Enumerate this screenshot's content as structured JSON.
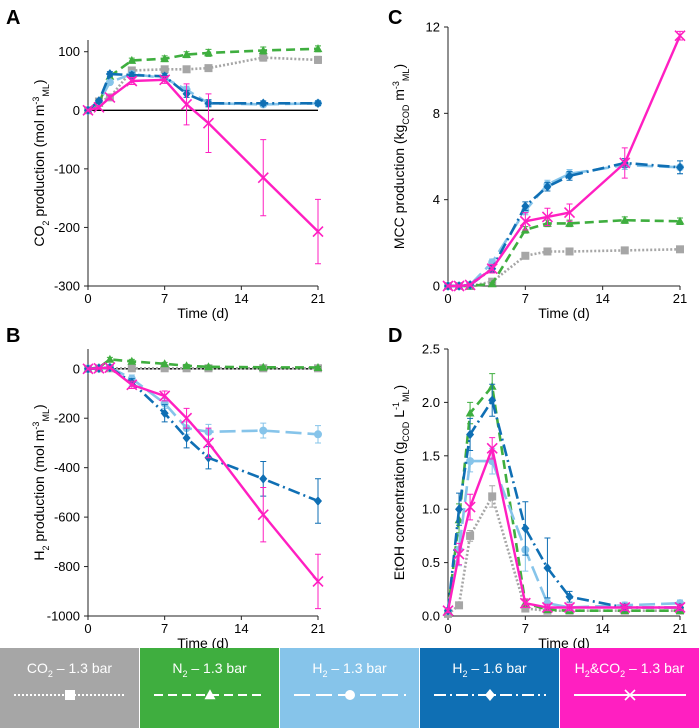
{
  "colors": {
    "co2": "#a6a6a6",
    "n2": "#3fae3f",
    "h2_13": "#86c4ea",
    "h2_16": "#0f6fb4",
    "h2co2": "#ff1fc1",
    "axis": "#222222",
    "zero_line": "#000000"
  },
  "legend": [
    {
      "key": "co2",
      "chem": "CO",
      "sub": "2",
      "rest": " – 1.3 bar",
      "marker": "square",
      "dash": "2,2"
    },
    {
      "key": "n2",
      "chem": "N",
      "sub": "2",
      "rest": " – 1.3 bar",
      "marker": "triangle",
      "dash": "9,5"
    },
    {
      "key": "h2_13",
      "chem": "H",
      "sub": "2",
      "rest": " – 1.3 bar",
      "marker": "circle",
      "dash": "16,6"
    },
    {
      "key": "h2_16",
      "chem": "H",
      "sub": "2",
      "rest": " – 1.6 bar",
      "marker": "diamond",
      "dash": "12,4,2,4"
    },
    {
      "key": "h2co2",
      "chem": "H",
      "sub": "2",
      "rest": "&CO",
      "sub2": "2",
      "rest2": " – 1.3 bar",
      "marker": "x",
      "dash": ""
    }
  ],
  "chart_data": [
    {
      "panel_label": "A",
      "type": "line",
      "xlabel": "Time (d)",
      "ylabel": {
        "main": "CO",
        "sub": "2",
        "rest": " production (mol m",
        "sup": "-3",
        "sub2": "ML",
        "end": ")"
      },
      "xlim": [
        0,
        21
      ],
      "ylim": [
        -300,
        120
      ],
      "xticks": [
        0,
        7,
        14,
        21
      ],
      "yticks": [
        -300,
        -200,
        -100,
        0,
        100
      ],
      "zero_line": true,
      "series": [
        {
          "name": "CO2 – 1.3 bar",
          "key": "co2",
          "x": [
            0,
            1,
            2,
            4,
            7,
            9,
            11,
            16,
            21
          ],
          "y": [
            0,
            15,
            22,
            68,
            70,
            70,
            72,
            90,
            86
          ],
          "err": [
            0,
            3,
            3,
            5,
            5,
            5,
            5,
            6,
            6
          ]
        },
        {
          "name": "N2 – 1.3 bar",
          "key": "n2",
          "x": [
            0,
            1,
            2,
            4,
            7,
            9,
            11,
            16,
            21
          ],
          "y": [
            0,
            12,
            58,
            85,
            88,
            95,
            98,
            102,
            105
          ],
          "err": [
            0,
            3,
            4,
            4,
            5,
            5,
            6,
            6,
            5
          ]
        },
        {
          "name": "H2 – 1.3 bar",
          "key": "h2_13",
          "x": [
            0,
            1,
            2,
            4,
            7,
            9,
            11,
            16,
            21
          ],
          "y": [
            0,
            14,
            48,
            62,
            55,
            35,
            12,
            10,
            12
          ],
          "err": [
            0,
            3,
            4,
            5,
            5,
            6,
            6,
            4,
            4
          ]
        },
        {
          "name": "H2 – 1.6 bar",
          "key": "h2_16",
          "x": [
            0,
            1,
            2,
            4,
            7,
            9,
            11,
            16,
            21
          ],
          "y": [
            0,
            16,
            62,
            60,
            58,
            28,
            12,
            12,
            12
          ],
          "err": [
            0,
            3,
            4,
            5,
            5,
            6,
            6,
            4,
            4
          ]
        },
        {
          "name": "H2&CO2 – 1.3 bar",
          "key": "h2co2",
          "x": [
            0,
            1,
            2,
            4,
            7,
            9,
            11,
            16,
            21
          ],
          "y": [
            0,
            5,
            22,
            50,
            52,
            10,
            -22,
            -115,
            -207
          ],
          "err": [
            0,
            3,
            4,
            6,
            6,
            35,
            50,
            65,
            55
          ]
        }
      ]
    },
    {
      "panel_label": "C",
      "type": "line",
      "xlabel": "Time (d)",
      "ylabel": {
        "main": "MCC production (kg",
        "sub": "COD",
        "rest": " m",
        "sup": "-3",
        "sub2": "ML",
        "end": ")"
      },
      "xlim": [
        0,
        21
      ],
      "ylim": [
        0,
        12
      ],
      "xticks": [
        0,
        7,
        14,
        21
      ],
      "yticks": [
        0,
        4,
        8,
        12
      ],
      "zero_line": false,
      "series": [
        {
          "name": "CO2 – 1.3 bar",
          "key": "co2",
          "x": [
            0,
            1,
            2,
            4,
            7,
            9,
            11,
            16,
            21
          ],
          "y": [
            0,
            0,
            0,
            0.2,
            1.4,
            1.6,
            1.6,
            1.65,
            1.7
          ],
          "err": [
            0,
            0,
            0,
            0.05,
            0.1,
            0.1,
            0.1,
            0.1,
            0.1
          ]
        },
        {
          "name": "N2 – 1.3 bar",
          "key": "n2",
          "x": [
            0,
            1,
            2,
            4,
            7,
            9,
            11,
            16,
            21
          ],
          "y": [
            0,
            0,
            0,
            0.1,
            2.6,
            2.9,
            2.9,
            3.05,
            3.0
          ],
          "err": [
            0,
            0,
            0,
            0.05,
            0.15,
            0.15,
            0.15,
            0.15,
            0.15
          ]
        },
        {
          "name": "H2 – 1.3 bar",
          "key": "h2_13",
          "x": [
            0,
            1,
            2,
            4,
            7,
            9,
            11,
            16,
            21
          ],
          "y": [
            0,
            0,
            0.05,
            1.1,
            3.5,
            4.7,
            5.2,
            5.6,
            5.5
          ],
          "err": [
            0,
            0,
            0.05,
            0.15,
            0.2,
            0.2,
            0.2,
            0.2,
            0.3
          ]
        },
        {
          "name": "H2 – 1.6 bar",
          "key": "h2_16",
          "x": [
            0,
            1,
            2,
            4,
            7,
            9,
            11,
            16,
            21
          ],
          "y": [
            0,
            0,
            0.05,
            0.8,
            3.7,
            4.6,
            5.1,
            5.7,
            5.5
          ],
          "err": [
            0,
            0,
            0.05,
            0.15,
            0.2,
            0.2,
            0.2,
            0.2,
            0.3
          ]
        },
        {
          "name": "H2&CO2 – 1.3 bar",
          "key": "h2co2",
          "x": [
            0,
            1,
            2,
            4,
            7,
            9,
            11,
            16,
            21
          ],
          "y": [
            0,
            0,
            0.05,
            0.8,
            3.0,
            3.2,
            3.4,
            5.7,
            11.6
          ],
          "err": [
            0,
            0,
            0.05,
            0.2,
            0.4,
            0.4,
            0.4,
            0.7,
            0.2
          ]
        }
      ]
    },
    {
      "panel_label": "B",
      "type": "line",
      "xlabel": "Time (d)",
      "ylabel": {
        "main": "H",
        "sub": "2",
        "rest": " production (mol m",
        "sup": "-3",
        "sub2": "ML",
        "end": ")"
      },
      "xlim": [
        0,
        21
      ],
      "ylim": [
        -1000,
        80
      ],
      "xticks": [
        0,
        7,
        14,
        21
      ],
      "yticks": [
        -1000,
        -800,
        -600,
        -400,
        -200,
        0
      ],
      "zero_line": true,
      "series": [
        {
          "name": "CO2 – 1.3 bar",
          "key": "co2",
          "x": [
            0,
            1,
            2,
            4,
            7,
            9,
            11,
            16,
            21
          ],
          "y": [
            0,
            2,
            2,
            2,
            2,
            2,
            2,
            2,
            2
          ],
          "err": [
            0,
            2,
            2,
            2,
            2,
            2,
            2,
            2,
            2
          ]
        },
        {
          "name": "N2 – 1.3 bar",
          "key": "n2",
          "x": [
            0,
            1,
            2,
            4,
            7,
            9,
            11,
            16,
            21
          ],
          "y": [
            0,
            5,
            38,
            30,
            20,
            12,
            8,
            6,
            5
          ],
          "err": [
            0,
            3,
            8,
            8,
            6,
            6,
            6,
            4,
            4
          ]
        },
        {
          "name": "H2 – 1.3 bar",
          "key": "h2_13",
          "x": [
            0,
            1,
            2,
            4,
            7,
            9,
            11,
            16,
            21
          ],
          "y": [
            0,
            2,
            5,
            -40,
            -140,
            -240,
            -255,
            -250,
            -265
          ],
          "err": [
            0,
            3,
            5,
            15,
            20,
            25,
            30,
            30,
            35
          ]
        },
        {
          "name": "H2 – 1.6 bar",
          "key": "h2_16",
          "x": [
            0,
            1,
            2,
            4,
            7,
            9,
            11,
            16,
            21
          ],
          "y": [
            0,
            2,
            5,
            -55,
            -180,
            -280,
            -360,
            -445,
            -535
          ],
          "err": [
            0,
            3,
            5,
            15,
            35,
            40,
            45,
            70,
            90
          ]
        },
        {
          "name": "H2&CO2 – 1.3 bar",
          "key": "h2co2",
          "x": [
            0,
            1,
            2,
            4,
            7,
            9,
            11,
            16,
            21
          ],
          "y": [
            0,
            2,
            5,
            -65,
            -110,
            -200,
            -300,
            -590,
            -860
          ],
          "err": [
            0,
            3,
            5,
            15,
            20,
            40,
            60,
            110,
            110
          ]
        }
      ]
    },
    {
      "panel_label": "D",
      "type": "line",
      "xlabel": "Time (d)",
      "ylabel": {
        "main": "EtOH concentration (g",
        "sub": "COD",
        "rest": " L",
        "sup": "-1",
        "sub2": "ML",
        "end": ")"
      },
      "xlim": [
        0,
        21
      ],
      "ylim": [
        0,
        2.5
      ],
      "xticks": [
        0,
        7,
        14,
        21
      ],
      "yticks": [
        0,
        0.5,
        1.0,
        1.5,
        2.0,
        2.5
      ],
      "ytick_labels": [
        "0.0",
        "0.5",
        "1.0",
        "1.5",
        "2.0",
        "2.5"
      ],
      "zero_line": false,
      "series": [
        {
          "name": "CO2 – 1.3 bar",
          "key": "co2",
          "x": [
            0,
            1,
            2,
            4,
            7,
            9,
            11,
            16,
            21
          ],
          "y": [
            0.02,
            0.1,
            0.75,
            1.12,
            0.07,
            0.05,
            0.05,
            0.05,
            0.05
          ],
          "err": [
            0.01,
            0.02,
            0.05,
            0.1,
            0.02,
            0.02,
            0.02,
            0.02,
            0.02
          ]
        },
        {
          "name": "N2 – 1.3 bar",
          "key": "n2",
          "x": [
            0,
            1,
            2,
            4,
            7,
            9,
            11,
            16,
            21
          ],
          "y": [
            0.05,
            0.9,
            1.9,
            2.15,
            0.12,
            0.06,
            0.05,
            0.05,
            0.05
          ],
          "err": [
            0.02,
            0.15,
            0.1,
            0.12,
            0.03,
            0.02,
            0.02,
            0.02,
            0.02
          ]
        },
        {
          "name": "H2 – 1.3 bar",
          "key": "h2_13",
          "x": [
            0,
            1,
            2,
            4,
            7,
            9,
            11,
            16,
            21
          ],
          "y": [
            0.05,
            0.62,
            1.45,
            1.45,
            0.62,
            0.12,
            0.08,
            0.1,
            0.12
          ],
          "err": [
            0.02,
            0.15,
            0.1,
            0.12,
            0.2,
            0.04,
            0.03,
            0.03,
            0.03
          ]
        },
        {
          "name": "H2 – 1.6 bar",
          "key": "h2_16",
          "x": [
            0,
            1,
            2,
            4,
            7,
            9,
            11,
            16,
            21
          ],
          "y": [
            0.05,
            1.0,
            1.7,
            2.02,
            0.82,
            0.45,
            0.18,
            0.08,
            0.08
          ],
          "err": [
            0.02,
            0.15,
            0.15,
            0.15,
            0.25,
            0.28,
            0.05,
            0.03,
            0.03
          ]
        },
        {
          "name": "H2&CO2 – 1.3 bar",
          "key": "h2co2",
          "x": [
            0,
            1,
            2,
            4,
            7,
            9,
            11,
            16,
            21
          ],
          "y": [
            0.05,
            0.58,
            1.02,
            1.57,
            0.12,
            0.08,
            0.08,
            0.08,
            0.08
          ],
          "err": [
            0.02,
            0.1,
            0.12,
            0.1,
            0.04,
            0.03,
            0.03,
            0.03,
            0.03
          ]
        }
      ]
    }
  ]
}
